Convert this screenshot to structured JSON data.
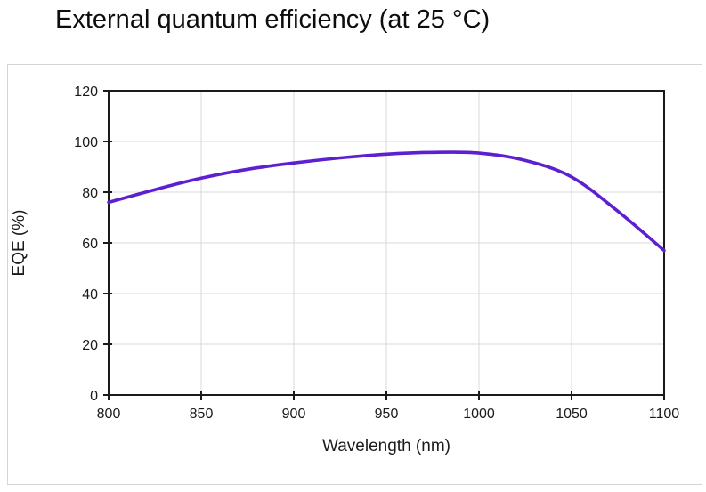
{
  "page": {
    "title": "External quantum efficiency (at 25 °C)"
  },
  "chart_data": {
    "type": "line",
    "title": "External quantum efficiency (at 25 °C)",
    "xlabel": "Wavelength (nm)",
    "ylabel": "EQE (%)",
    "xlim": [
      800,
      1100
    ],
    "ylim": [
      0,
      120
    ],
    "xticks": [
      800,
      850,
      900,
      950,
      1000,
      1050,
      1100
    ],
    "yticks": [
      0,
      20,
      40,
      60,
      80,
      100,
      120
    ],
    "grid": true,
    "legend": false,
    "series": [
      {
        "name": "EQE",
        "color": "#5c20d0",
        "x": [
          800,
          825,
          850,
          875,
          900,
          925,
          950,
          975,
          1000,
          1025,
          1050,
          1075,
          1100
        ],
        "y": [
          76,
          81,
          85.5,
          89,
          91.5,
          93.5,
          95,
          95.7,
          95.4,
          92.5,
          86,
          72.5,
          57
        ]
      }
    ]
  },
  "colors": {
    "grid": "#d9d9d9",
    "axis": "#1a1a1a",
    "text": "#1a1a1a",
    "panel_border": "#d5d5d5",
    "curve": "#5c20d0"
  }
}
